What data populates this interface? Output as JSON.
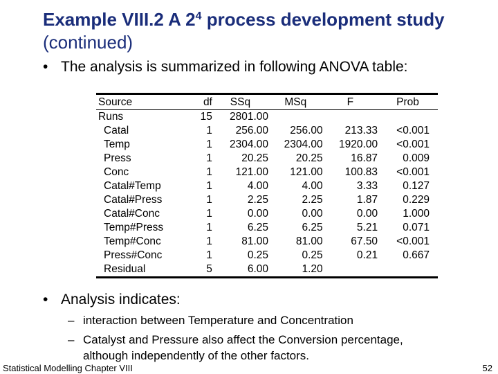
{
  "title": {
    "bold_prefix": "Example VIII.2 A 2",
    "superscript": "4",
    "bold_suffix": " process development study",
    "line2": "(continued)"
  },
  "bullets": {
    "first": "The analysis is summarized in following ANOVA table:",
    "second": "Analysis indicates:"
  },
  "sub_bullets": [
    "interaction between Temperature and Concentration",
    "Catalyst and Pressure also affect the Conversion percentage,",
    "although independently of the other factors."
  ],
  "anova": {
    "headers": [
      "Source",
      "df",
      "SSq",
      "MSq",
      "F",
      "Prob"
    ],
    "rows": [
      {
        "source": "Runs",
        "df": "15",
        "ssq": "2801.00",
        "msq": "",
        "f": "",
        "prob": ""
      },
      {
        "source": "Catal",
        "df": "1",
        "ssq": "256.00",
        "msq": "256.00",
        "f": "213.33",
        "prob": "<0.001"
      },
      {
        "source": "Temp",
        "df": "1",
        "ssq": "2304.00",
        "msq": "2304.00",
        "f": "1920.00",
        "prob": "<0.001"
      },
      {
        "source": "Press",
        "df": "1",
        "ssq": "20.25",
        "msq": "20.25",
        "f": "16.87",
        "prob": "0.009"
      },
      {
        "source": "Conc",
        "df": "1",
        "ssq": "121.00",
        "msq": "121.00",
        "f": "100.83",
        "prob": "<0.001"
      },
      {
        "source": "Catal#Temp",
        "df": "1",
        "ssq": "4.00",
        "msq": "4.00",
        "f": "3.33",
        "prob": "0.127"
      },
      {
        "source": "Catal#Press",
        "df": "1",
        "ssq": "2.25",
        "msq": "2.25",
        "f": "1.87",
        "prob": "0.229"
      },
      {
        "source": "Catal#Conc",
        "df": "1",
        "ssq": "0.00",
        "msq": "0.00",
        "f": "0.00",
        "prob": "1.000"
      },
      {
        "source": "Temp#Press",
        "df": "1",
        "ssq": "6.25",
        "msq": "6.25",
        "f": "5.21",
        "prob": "0.071"
      },
      {
        "source": "Temp#Conc",
        "df": "1",
        "ssq": "81.00",
        "msq": "81.00",
        "f": "67.50",
        "prob": "<0.001"
      },
      {
        "source": "Press#Conc",
        "df": "1",
        "ssq": "0.25",
        "msq": "0.25",
        "f": "0.21",
        "prob": "0.667"
      },
      {
        "source": "Residual",
        "df": "5",
        "ssq": "6.00",
        "msq": "1.20",
        "f": "",
        "prob": ""
      }
    ]
  },
  "footer": {
    "left": "Statistical Modelling   Chapter VIII",
    "page_number": "52"
  },
  "colors": {
    "title": "#1a2d7a",
    "text": "#000000",
    "background": "#ffffff"
  }
}
